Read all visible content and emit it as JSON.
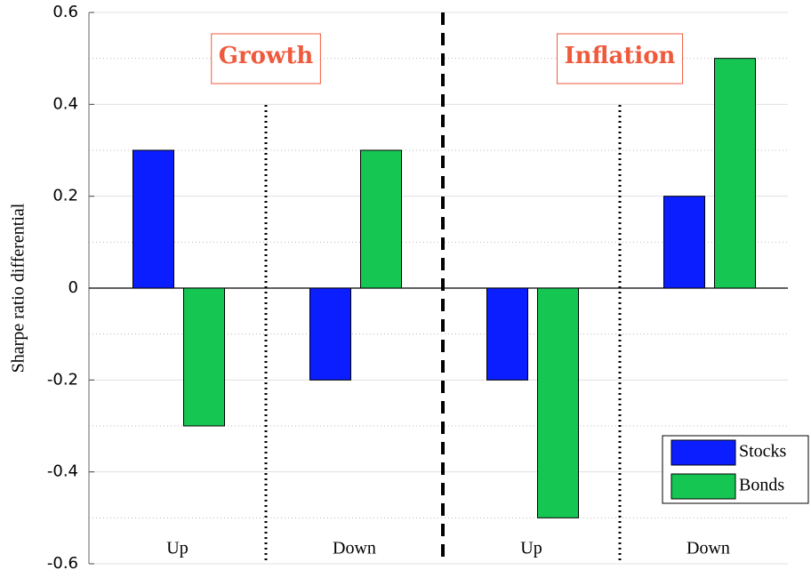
{
  "chart_data": {
    "type": "bar",
    "y_label": "Sharpe ratio differential",
    "categories": [
      "Up",
      "Down",
      "Up",
      "Down"
    ],
    "group_labels": [
      "Growth",
      "Inflation"
    ],
    "series": [
      {
        "name": "Stocks",
        "color": "#0a1eff",
        "values": [
          0.3,
          -0.2,
          -0.2,
          0.2
        ]
      },
      {
        "name": "Bonds",
        "color": "#16c653",
        "values": [
          -0.3,
          0.3,
          -0.5,
          0.5
        ]
      }
    ],
    "ylim": [
      -0.6,
      0.6
    ],
    "yticks": [
      -0.6,
      -0.4,
      -0.2,
      0,
      0.2,
      0.4,
      0.6
    ],
    "grid": true,
    "minor_grid": true,
    "legend": "lower right"
  }
}
